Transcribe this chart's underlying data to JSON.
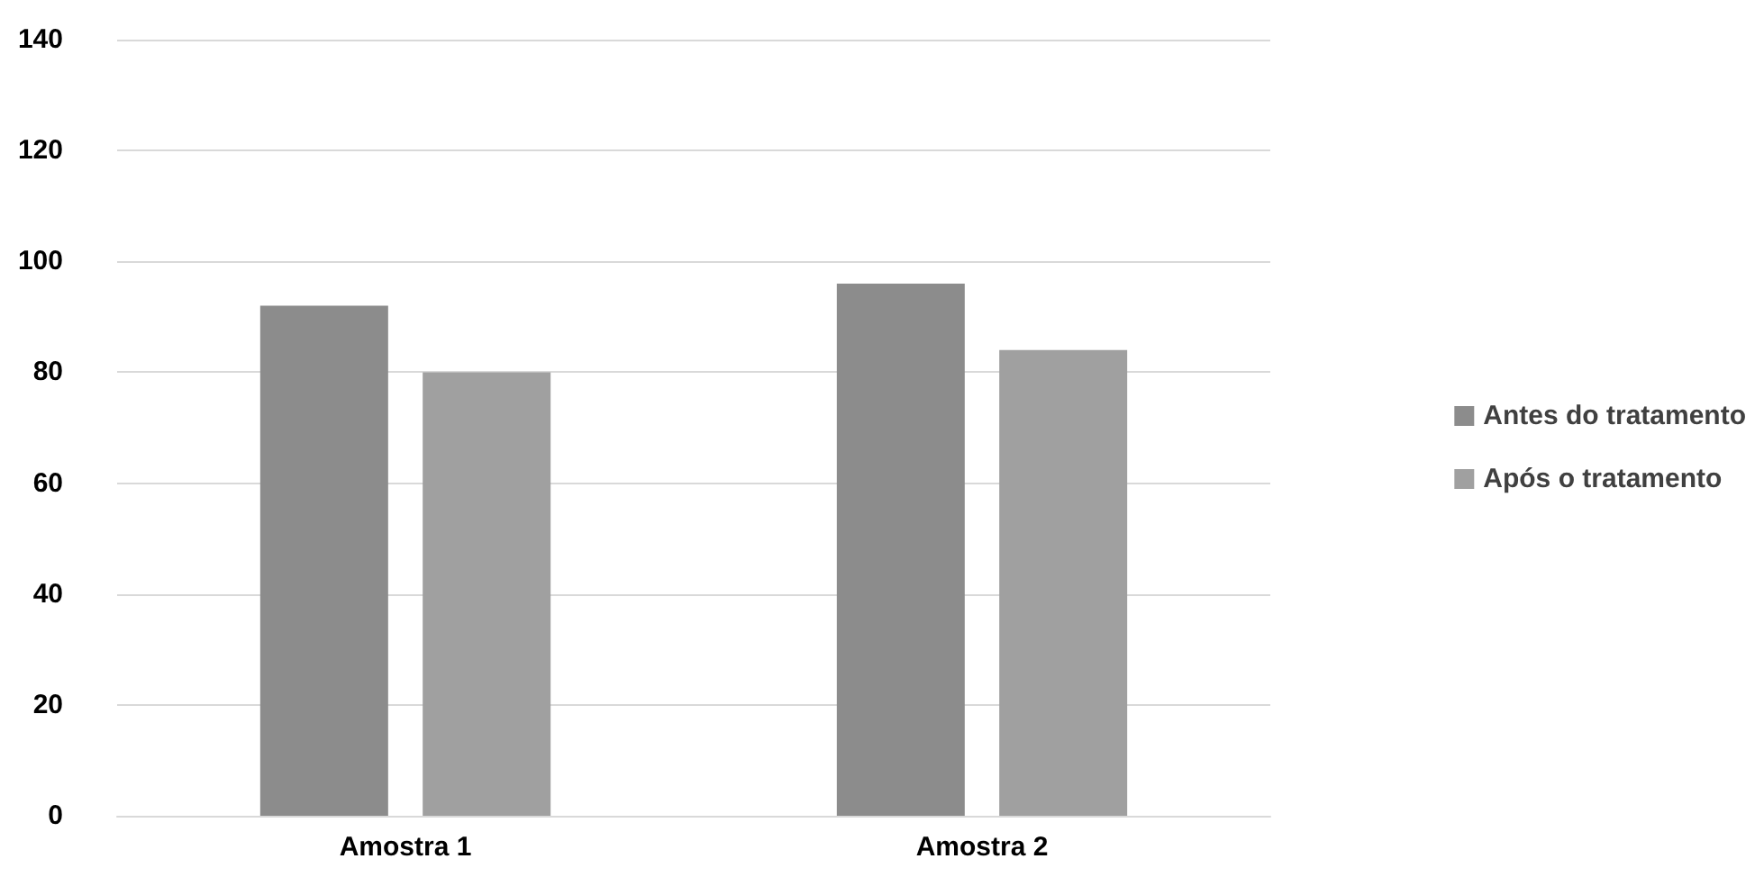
{
  "chart_data": {
    "type": "bar",
    "categories": [
      "Amostra 1",
      "Amostra 2"
    ],
    "series": [
      {
        "name": "Antes do tratamento",
        "color": "#8c8c8c",
        "values": [
          92,
          96
        ]
      },
      {
        "name": "Após o tratamento",
        "color": "#a0a0a0",
        "values": [
          80,
          84
        ]
      }
    ],
    "ylim": [
      0,
      140
    ],
    "yticks": [
      0,
      20,
      40,
      60,
      80,
      100,
      120,
      140
    ],
    "grid": "y",
    "legend": "right"
  }
}
